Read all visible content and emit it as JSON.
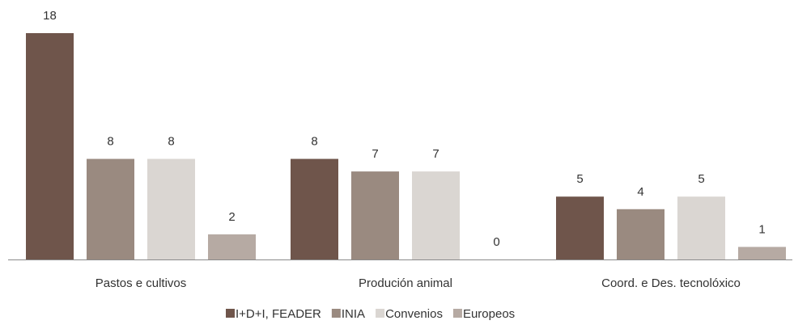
{
  "chart_data": {
    "type": "bar",
    "categories": [
      "Pastos e cultivos",
      "Produción animal",
      "Coord. e Des. tecnolóxico"
    ],
    "series": [
      {
        "name": "I+D+I, FEADER",
        "values": [
          18,
          8,
          5
        ],
        "color": "#6f554b"
      },
      {
        "name": "INIA",
        "values": [
          8,
          7,
          4
        ],
        "color": "#9a8a80"
      },
      {
        "name": "Convenios",
        "values": [
          8,
          7,
          5
        ],
        "color": "#dad6d2"
      },
      {
        "name": "Europeos",
        "values": [
          2,
          0,
          1
        ],
        "color": "#b6aaa3"
      }
    ],
    "title": "",
    "xlabel": "",
    "ylabel": "",
    "ylim": [
      0,
      18
    ],
    "grid": false,
    "legend_position": "bottom-center",
    "data_labels": true
  }
}
